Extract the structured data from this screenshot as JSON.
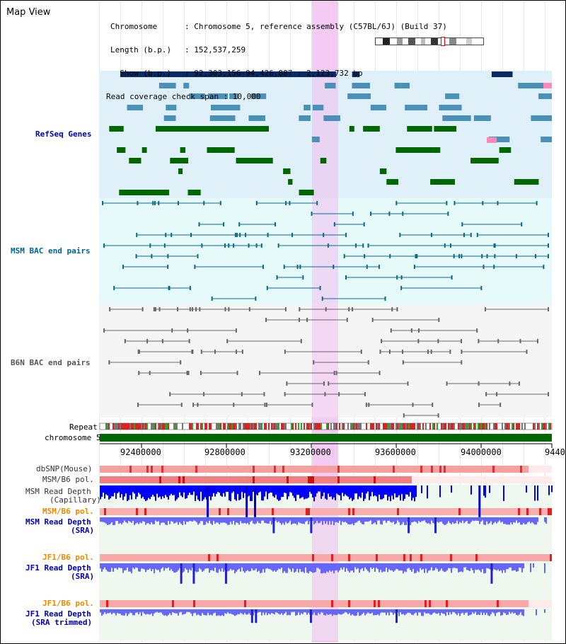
{
  "header": {
    "title": "Map View",
    "info_rows": [
      {
        "key": "Chromosome",
        "value": ": Chromosome 5, reference assembly (C57BL/6J) (Build 37)"
      },
      {
        "key": "Length (b.p.)",
        "value": ": 152,537,259"
      },
      {
        "key": "  Show (b.p.)",
        "value": ": 92,303,156-94,426,887 : 2,123,732 bp"
      }
    ],
    "span_line": "Read coverage check span : 10,000"
  },
  "tracks": {
    "refseq": "RefSeq Genes",
    "msm_bac": "MSM BAC end pairs",
    "b6n_bac": "B6N BAC end pairs",
    "repeat": "Repeat",
    "chromosome": "chromosome 5",
    "dbsnp": "dbSNP(Mouse)",
    "msm_b6_pol_1": "MSM/B6 pol.",
    "msm_read_depth_cap_1": "MSM Read Depth",
    "msm_read_depth_cap_2": "(Capillary)",
    "msm_b6_pol_2": "MSM/B6 pol.",
    "msm_read_depth_sra_1": "MSM Read Depth",
    "msm_read_depth_sra_2": "(SRA)",
    "jf1_b6_pol_1": "JF1/B6 pol.",
    "jf1_read_depth_sra_1": "JF1 Read Depth",
    "jf1_read_depth_sra_2": "(SRA)",
    "jf1_b6_pol_2": "JF1/B6 pol.",
    "jf1_read_depth_trim_1": "JF1 Read Depth",
    "jf1_read_depth_trim_2": "(SRA trimmed)"
  },
  "axis": {
    "ticks": [
      "92400000",
      "92800000",
      "93200000",
      "93600000",
      "94000000",
      "9440"
    ]
  },
  "colors": {
    "refseq_bg": "#dff0f8",
    "msm_bg": "#e6fafa",
    "b6n_bg": "#f5f5f5",
    "highlight": "#f0bef0",
    "label_blue": "#0000aa",
    "label_teal": "#006688",
    "label_orange": "#ee8800",
    "chromosome_bar": "#006600",
    "depth_capillary": "#0000ff",
    "depth_sra": "#6666ff"
  }
}
